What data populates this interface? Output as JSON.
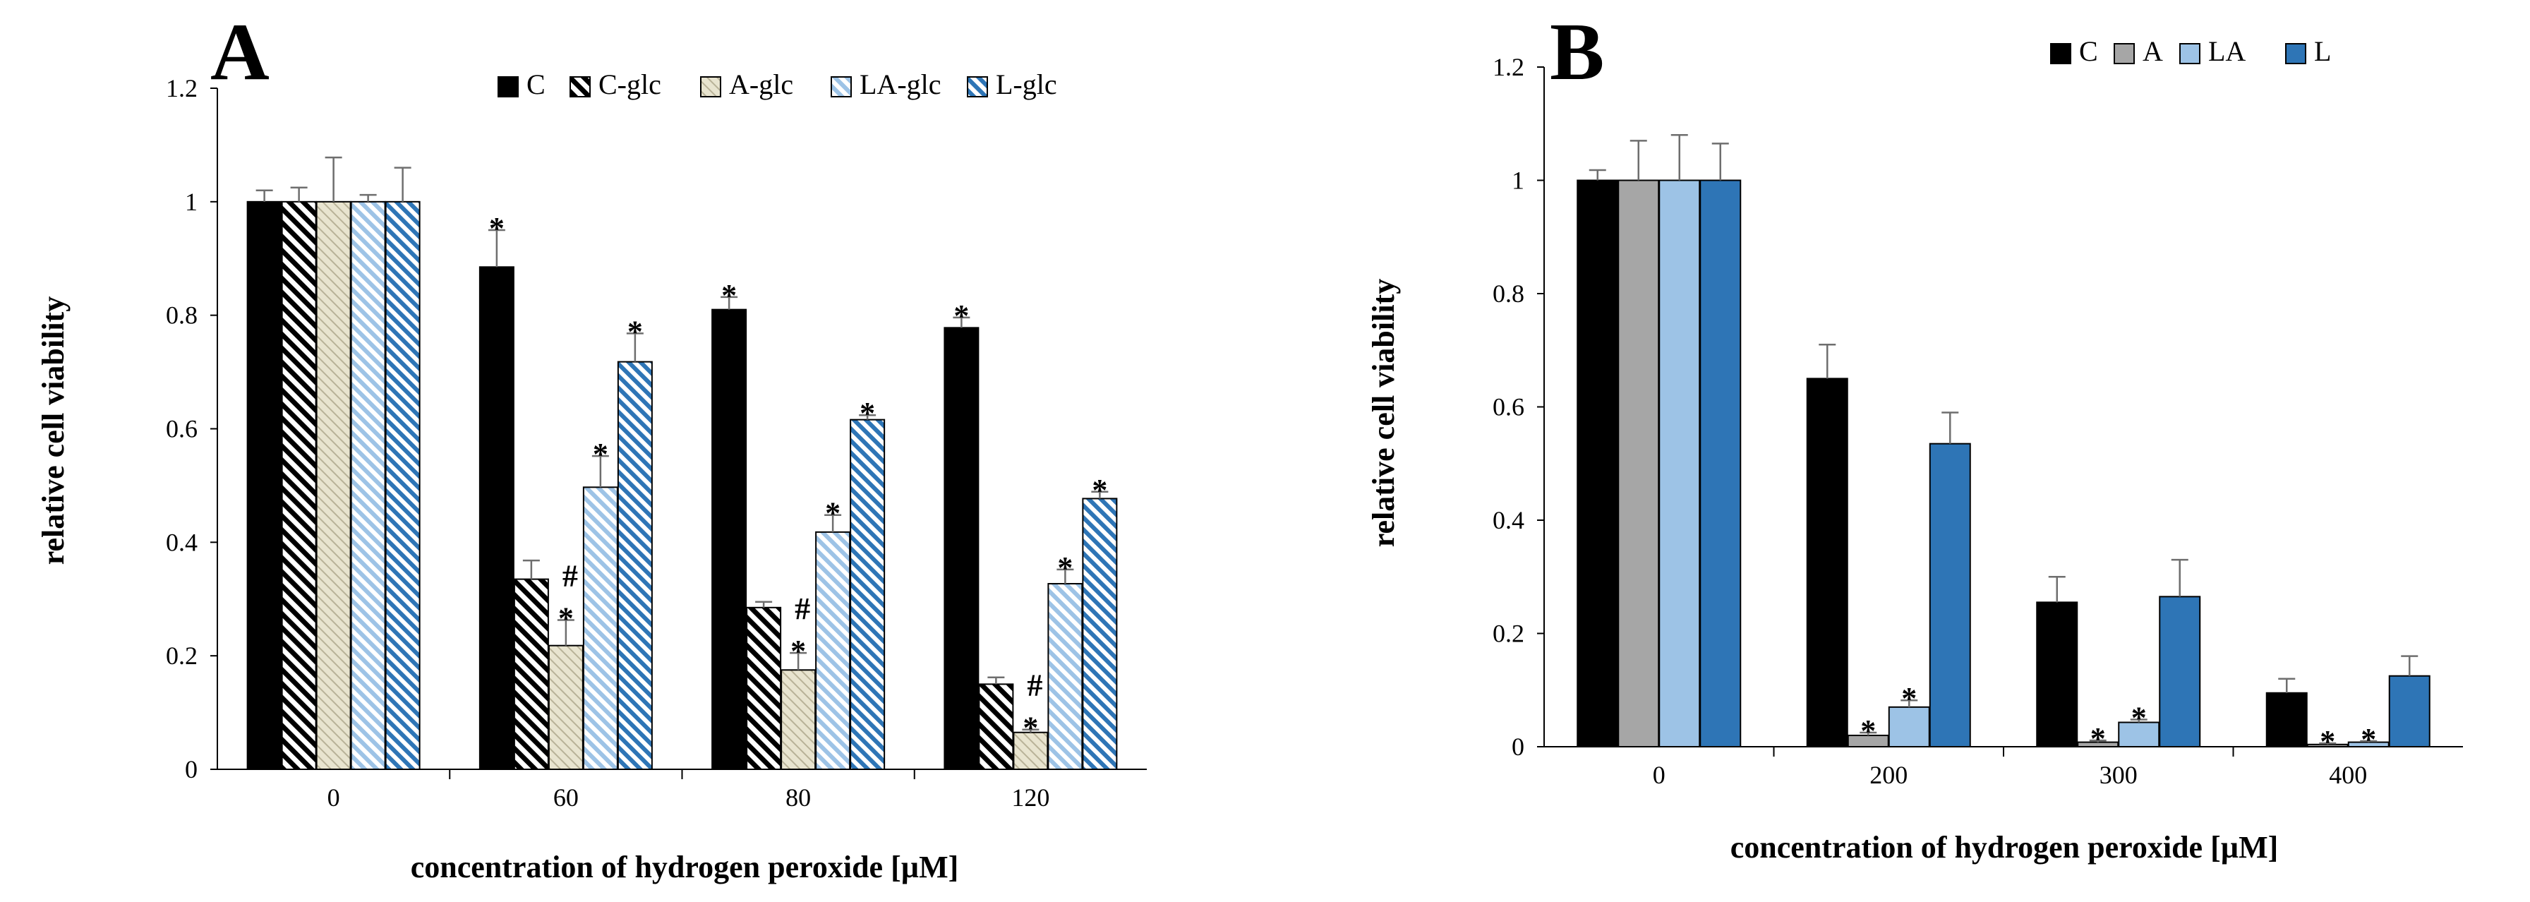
{
  "colors": {
    "C": "#000000",
    "A": "#a6a6a6",
    "LA": "#9dc3e6",
    "L": "#2e75b6",
    "hatch_cglc": "#000000",
    "hatch_aglc_bg": "#e8e4cf",
    "hatch_laglc": "#9dc3e6",
    "hatch_lglc": "#2e75b6",
    "error_bar": "#6e6e6e"
  },
  "chart_data": [
    {
      "panel": "A",
      "type": "bar",
      "xlabel": "concentration of hydrogen peroxide [µM]",
      "ylabel": "relative cell viability",
      "ylim": [
        0,
        1.2
      ],
      "yticks": [
        "0",
        "0.2",
        "0.4",
        "0.6",
        "0.8",
        "1",
        "1.2"
      ],
      "legend_position": "top-right",
      "categories": [
        "0",
        "60",
        "80",
        "120"
      ],
      "series": [
        {
          "name": "C",
          "fill": "solid-black",
          "values": [
            1.0,
            0.885,
            0.81,
            0.778
          ],
          "errors": [
            0.02,
            0.065,
            0.022,
            0.018
          ],
          "marks": [
            "",
            "*",
            "*",
            "*"
          ]
        },
        {
          "name": "C-glc",
          "fill": "hatch-black",
          "values": [
            1.0,
            0.335,
            0.285,
            0.15
          ],
          "errors": [
            0.025,
            0.033,
            0.01,
            0.012
          ],
          "marks": [
            "",
            "",
            "",
            ""
          ]
        },
        {
          "name": "A-glc",
          "fill": "hatch-cream",
          "values": [
            1.0,
            0.218,
            0.175,
            0.065
          ],
          "errors": [
            0.078,
            0.045,
            0.03,
            0.005
          ],
          "marks": [
            "",
            "#\n*",
            "#\n*",
            "#\n*"
          ]
        },
        {
          "name": "LA-glc",
          "fill": "hatch-lightblue",
          "values": [
            1.0,
            0.497,
            0.418,
            0.327
          ],
          "errors": [
            0.012,
            0.055,
            0.03,
            0.025
          ],
          "marks": [
            "",
            "*",
            "*",
            "*"
          ]
        },
        {
          "name": "L-glc",
          "fill": "hatch-blue",
          "values": [
            1.0,
            0.718,
            0.616,
            0.477
          ],
          "errors": [
            0.06,
            0.05,
            0.008,
            0.012
          ],
          "marks": [
            "",
            "*",
            "*",
            "*"
          ]
        }
      ]
    },
    {
      "panel": "B",
      "type": "bar",
      "xlabel": "concentration of hydrogen peroxide [µM]",
      "ylabel": "relative cell viability",
      "ylim": [
        0,
        1.2
      ],
      "yticks": [
        "0",
        "0.2",
        "0.4",
        "0.6",
        "0.8",
        "1",
        "1.2"
      ],
      "legend_position": "top-right",
      "categories": [
        "0",
        "200",
        "300",
        "400"
      ],
      "series": [
        {
          "name": "C",
          "fill": "solid-black",
          "values": [
            1.0,
            0.65,
            0.255,
            0.095
          ],
          "errors": [
            0.018,
            0.06,
            0.045,
            0.025
          ],
          "marks": [
            "",
            "",
            "",
            ""
          ]
        },
        {
          "name": "A",
          "fill": "solid-gray",
          "values": [
            1.0,
            0.02,
            0.008,
            0.004
          ],
          "errors": [
            0.07,
            0.005,
            0.003,
            0.002
          ],
          "marks": [
            "",
            "*",
            "*",
            "*"
          ]
        },
        {
          "name": "LA",
          "fill": "solid-lightblue",
          "values": [
            1.0,
            0.07,
            0.043,
            0.008
          ],
          "errors": [
            0.08,
            0.012,
            0.005,
            0.002
          ],
          "marks": [
            "",
            "*",
            "*",
            "*"
          ]
        },
        {
          "name": "L",
          "fill": "solid-blue",
          "values": [
            1.0,
            0.535,
            0.265,
            0.125
          ],
          "errors": [
            0.065,
            0.055,
            0.065,
            0.035
          ],
          "marks": [
            "",
            "",
            "",
            ""
          ]
        }
      ]
    }
  ]
}
